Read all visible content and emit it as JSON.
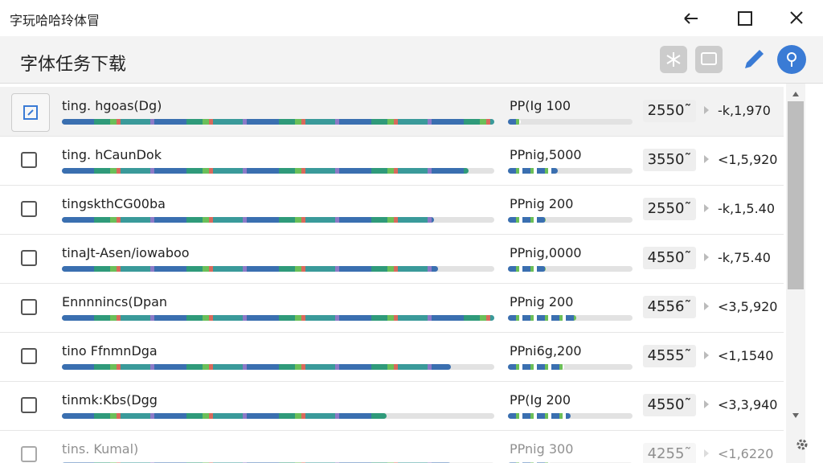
{
  "window": {
    "title": "字玩哈哈玲体冒"
  },
  "header": {
    "title": "字体任务下载"
  },
  "rows": [
    {
      "name": "ting. hgoas(Dg)",
      "status": "PP(Ig 100",
      "count": "2550˜",
      "size": "-k,1,970",
      "progress": 1.0,
      "sub_progress": 0.1
    },
    {
      "name": "ting. hCaunDok",
      "status": "PPnig,5000",
      "count": "3550˜",
      "size": "<1,5,920",
      "progress": 0.94,
      "sub_progress": 0.4
    },
    {
      "name": "tingskthCG00ba",
      "status": "PPnig 200",
      "count": "2550˜",
      "size": "-k,1,5.40",
      "progress": 0.86,
      "sub_progress": 0.3
    },
    {
      "name": "tinaJt-Asen/iowaboo",
      "status": "PPnig,0000",
      "count": "4550˜",
      "size": "-k,75.40",
      "progress": 0.87,
      "sub_progress": 0.3
    },
    {
      "name": "Ennnnincs(Dpan",
      "status": "PPnig 200",
      "count": "4556˜",
      "size": "<3,5,920",
      "progress": 1.0,
      "sub_progress": 0.55
    },
    {
      "name": "tino FfnmnDga",
      "status": "PPni6g,200",
      "count": "4555˜",
      "size": "<1,1540",
      "progress": 0.9,
      "sub_progress": 0.45
    },
    {
      "name": "tinmk:Kbs(Dgg",
      "status": "PP(Ig 200",
      "count": "4550˜",
      "size": "<3,3,940",
      "progress": 0.75,
      "sub_progress": 0.5
    },
    {
      "name": "tins. Kumal)",
      "status": "PPnig 300",
      "count": "4255˜",
      "size": "<1,6220",
      "progress": 0.9,
      "sub_progress": 0.35
    }
  ]
}
